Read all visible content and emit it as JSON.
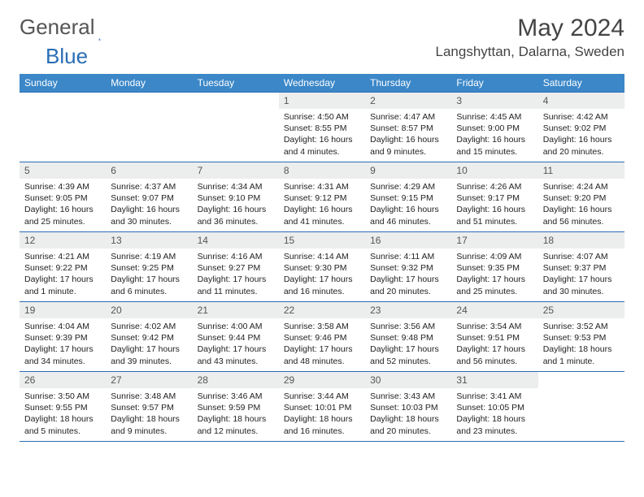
{
  "logo": {
    "text1": "General",
    "text2": "Blue"
  },
  "title": "May 2024",
  "location": "Langshyttan, Dalarna, Sweden",
  "colors": {
    "header_bg": "#3b87c8",
    "header_text": "#ffffff",
    "daynum_bg": "#eceded",
    "border": "#2a6db5",
    "logo_gray": "#555555",
    "logo_blue": "#2a6db5"
  },
  "weekdays": [
    "Sunday",
    "Monday",
    "Tuesday",
    "Wednesday",
    "Thursday",
    "Friday",
    "Saturday"
  ],
  "weeks": [
    [
      {
        "n": "",
        "lines": []
      },
      {
        "n": "",
        "lines": []
      },
      {
        "n": "",
        "lines": []
      },
      {
        "n": "1",
        "lines": [
          "Sunrise: 4:50 AM",
          "Sunset: 8:55 PM",
          "Daylight: 16 hours",
          "and 4 minutes."
        ]
      },
      {
        "n": "2",
        "lines": [
          "Sunrise: 4:47 AM",
          "Sunset: 8:57 PM",
          "Daylight: 16 hours",
          "and 9 minutes."
        ]
      },
      {
        "n": "3",
        "lines": [
          "Sunrise: 4:45 AM",
          "Sunset: 9:00 PM",
          "Daylight: 16 hours",
          "and 15 minutes."
        ]
      },
      {
        "n": "4",
        "lines": [
          "Sunrise: 4:42 AM",
          "Sunset: 9:02 PM",
          "Daylight: 16 hours",
          "and 20 minutes."
        ]
      }
    ],
    [
      {
        "n": "5",
        "lines": [
          "Sunrise: 4:39 AM",
          "Sunset: 9:05 PM",
          "Daylight: 16 hours",
          "and 25 minutes."
        ]
      },
      {
        "n": "6",
        "lines": [
          "Sunrise: 4:37 AM",
          "Sunset: 9:07 PM",
          "Daylight: 16 hours",
          "and 30 minutes."
        ]
      },
      {
        "n": "7",
        "lines": [
          "Sunrise: 4:34 AM",
          "Sunset: 9:10 PM",
          "Daylight: 16 hours",
          "and 36 minutes."
        ]
      },
      {
        "n": "8",
        "lines": [
          "Sunrise: 4:31 AM",
          "Sunset: 9:12 PM",
          "Daylight: 16 hours",
          "and 41 minutes."
        ]
      },
      {
        "n": "9",
        "lines": [
          "Sunrise: 4:29 AM",
          "Sunset: 9:15 PM",
          "Daylight: 16 hours",
          "and 46 minutes."
        ]
      },
      {
        "n": "10",
        "lines": [
          "Sunrise: 4:26 AM",
          "Sunset: 9:17 PM",
          "Daylight: 16 hours",
          "and 51 minutes."
        ]
      },
      {
        "n": "11",
        "lines": [
          "Sunrise: 4:24 AM",
          "Sunset: 9:20 PM",
          "Daylight: 16 hours",
          "and 56 minutes."
        ]
      }
    ],
    [
      {
        "n": "12",
        "lines": [
          "Sunrise: 4:21 AM",
          "Sunset: 9:22 PM",
          "Daylight: 17 hours",
          "and 1 minute."
        ]
      },
      {
        "n": "13",
        "lines": [
          "Sunrise: 4:19 AM",
          "Sunset: 9:25 PM",
          "Daylight: 17 hours",
          "and 6 minutes."
        ]
      },
      {
        "n": "14",
        "lines": [
          "Sunrise: 4:16 AM",
          "Sunset: 9:27 PM",
          "Daylight: 17 hours",
          "and 11 minutes."
        ]
      },
      {
        "n": "15",
        "lines": [
          "Sunrise: 4:14 AM",
          "Sunset: 9:30 PM",
          "Daylight: 17 hours",
          "and 16 minutes."
        ]
      },
      {
        "n": "16",
        "lines": [
          "Sunrise: 4:11 AM",
          "Sunset: 9:32 PM",
          "Daylight: 17 hours",
          "and 20 minutes."
        ]
      },
      {
        "n": "17",
        "lines": [
          "Sunrise: 4:09 AM",
          "Sunset: 9:35 PM",
          "Daylight: 17 hours",
          "and 25 minutes."
        ]
      },
      {
        "n": "18",
        "lines": [
          "Sunrise: 4:07 AM",
          "Sunset: 9:37 PM",
          "Daylight: 17 hours",
          "and 30 minutes."
        ]
      }
    ],
    [
      {
        "n": "19",
        "lines": [
          "Sunrise: 4:04 AM",
          "Sunset: 9:39 PM",
          "Daylight: 17 hours",
          "and 34 minutes."
        ]
      },
      {
        "n": "20",
        "lines": [
          "Sunrise: 4:02 AM",
          "Sunset: 9:42 PM",
          "Daylight: 17 hours",
          "and 39 minutes."
        ]
      },
      {
        "n": "21",
        "lines": [
          "Sunrise: 4:00 AM",
          "Sunset: 9:44 PM",
          "Daylight: 17 hours",
          "and 43 minutes."
        ]
      },
      {
        "n": "22",
        "lines": [
          "Sunrise: 3:58 AM",
          "Sunset: 9:46 PM",
          "Daylight: 17 hours",
          "and 48 minutes."
        ]
      },
      {
        "n": "23",
        "lines": [
          "Sunrise: 3:56 AM",
          "Sunset: 9:48 PM",
          "Daylight: 17 hours",
          "and 52 minutes."
        ]
      },
      {
        "n": "24",
        "lines": [
          "Sunrise: 3:54 AM",
          "Sunset: 9:51 PM",
          "Daylight: 17 hours",
          "and 56 minutes."
        ]
      },
      {
        "n": "25",
        "lines": [
          "Sunrise: 3:52 AM",
          "Sunset: 9:53 PM",
          "Daylight: 18 hours",
          "and 1 minute."
        ]
      }
    ],
    [
      {
        "n": "26",
        "lines": [
          "Sunrise: 3:50 AM",
          "Sunset: 9:55 PM",
          "Daylight: 18 hours",
          "and 5 minutes."
        ]
      },
      {
        "n": "27",
        "lines": [
          "Sunrise: 3:48 AM",
          "Sunset: 9:57 PM",
          "Daylight: 18 hours",
          "and 9 minutes."
        ]
      },
      {
        "n": "28",
        "lines": [
          "Sunrise: 3:46 AM",
          "Sunset: 9:59 PM",
          "Daylight: 18 hours",
          "and 12 minutes."
        ]
      },
      {
        "n": "29",
        "lines": [
          "Sunrise: 3:44 AM",
          "Sunset: 10:01 PM",
          "Daylight: 18 hours",
          "and 16 minutes."
        ]
      },
      {
        "n": "30",
        "lines": [
          "Sunrise: 3:43 AM",
          "Sunset: 10:03 PM",
          "Daylight: 18 hours",
          "and 20 minutes."
        ]
      },
      {
        "n": "31",
        "lines": [
          "Sunrise: 3:41 AM",
          "Sunset: 10:05 PM",
          "Daylight: 18 hours",
          "and 23 minutes."
        ]
      },
      {
        "n": "",
        "lines": []
      }
    ]
  ]
}
